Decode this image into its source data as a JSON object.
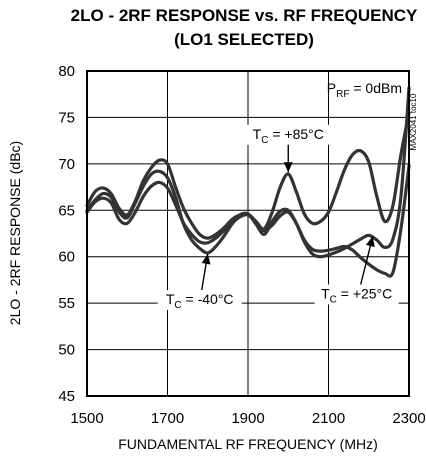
{
  "chart_data": {
    "type": "line",
    "title_line1": "2LO - 2RF RESPONSE vs. RF FREQUENCY",
    "title_line2": "(LO1 SELECTED)",
    "xlabel": "FUNDAMENTAL RF FREQUENCY (MHz)",
    "ylabel": "2LO - 2RF RESPONSE (dBc)",
    "xlim": [
      1500,
      2300
    ],
    "ylim": [
      45,
      80
    ],
    "xticks": [
      1500,
      1700,
      1900,
      2100,
      2300
    ],
    "yticks": [
      45,
      50,
      55,
      60,
      65,
      70,
      75,
      80
    ],
    "grid": true,
    "side_code": "MAX2041 toc10",
    "condition": {
      "main": "P",
      "sub": "RF",
      "rest": " = 0dBm"
    },
    "annotations": [
      {
        "main": "T",
        "sub": "C",
        "rest": " = +85°C",
        "x": 2000,
        "y": 72.7,
        "arrow_to": [
          2000,
          69.1
        ]
      },
      {
        "main": "T",
        "sub": "C",
        "rest": " = -40°C",
        "x": 1780,
        "y": 54.9,
        "arrow_to": [
          1800,
          60.3
        ]
      },
      {
        "main": "T",
        "sub": "C",
        "rest": " = +25°C",
        "x": 2170,
        "y": 55.5,
        "arrow_to": [
          2210,
          62.2
        ]
      }
    ],
    "series": [
      {
        "x": [
          1500,
          1520,
          1540,
          1560,
          1580,
          1600,
          1620,
          1640,
          1660,
          1680,
          1700,
          1720,
          1740,
          1760,
          1780,
          1800,
          1820,
          1840,
          1860,
          1880,
          1900,
          1920,
          1940,
          1960,
          1980,
          2000,
          2020,
          2040,
          2060,
          2080,
          2100,
          2120,
          2140,
          2160,
          2180,
          2200,
          2220,
          2240,
          2260,
          2280,
          2300
        ],
        "values": [
          65.5,
          67.0,
          67.4,
          66.8,
          65.2,
          64.5,
          66.0,
          68.2,
          69.6,
          70.4,
          70.0,
          67.5,
          65.2,
          63.6,
          62.4,
          62.0,
          62.4,
          63.1,
          64.0,
          64.5,
          64.6,
          63.8,
          63.0,
          64.8,
          67.5,
          68.9,
          67.0,
          64.6,
          63.6,
          63.8,
          64.8,
          67.0,
          69.4,
          71.0,
          71.4,
          70.2,
          66.5,
          63.8,
          65.5,
          71.0,
          75.5
        ]
      },
      {
        "x": [
          1500,
          1520,
          1540,
          1560,
          1580,
          1600,
          1620,
          1640,
          1660,
          1680,
          1700,
          1720,
          1740,
          1760,
          1780,
          1800,
          1820,
          1840,
          1860,
          1880,
          1900,
          1920,
          1940,
          1960,
          1980,
          2000,
          2020,
          2040,
          2060,
          2080,
          2100,
          2120,
          2140,
          2160,
          2180,
          2200,
          2220,
          2240,
          2260,
          2280,
          2300
        ],
        "values": [
          65.0,
          66.1,
          66.8,
          66.4,
          64.8,
          64.2,
          65.8,
          67.6,
          68.9,
          69.2,
          68.5,
          66.4,
          63.5,
          61.8,
          60.9,
          60.4,
          61.1,
          62.2,
          63.5,
          64.5,
          64.6,
          63.5,
          62.4,
          63.8,
          64.9,
          65.0,
          63.6,
          61.6,
          60.3,
          60.0,
          60.2,
          60.5,
          60.9,
          61.4,
          61.9,
          62.3,
          61.8,
          61.0,
          61.9,
          66.5,
          78.2
        ]
      },
      {
        "x": [
          1500,
          1520,
          1540,
          1560,
          1580,
          1600,
          1620,
          1640,
          1660,
          1680,
          1700,
          1720,
          1740,
          1760,
          1780,
          1800,
          1820,
          1840,
          1860,
          1880,
          1900,
          1920,
          1940,
          1960,
          1980,
          2000,
          2020,
          2040,
          2060,
          2080,
          2100,
          2120,
          2140,
          2160,
          2180,
          2200,
          2220,
          2240,
          2260,
          2280,
          2300
        ],
        "values": [
          64.8,
          65.9,
          66.3,
          65.8,
          64.0,
          63.6,
          64.8,
          66.5,
          67.6,
          68.0,
          67.4,
          65.6,
          63.6,
          62.4,
          61.6,
          61.5,
          62.0,
          62.8,
          63.6,
          64.3,
          64.5,
          63.7,
          62.8,
          63.4,
          64.4,
          64.8,
          63.6,
          61.8,
          60.8,
          60.6,
          60.7,
          60.9,
          61.1,
          60.7,
          59.9,
          59.2,
          58.6,
          58.2,
          58.3,
          63.0,
          69.8
        ]
      }
    ]
  }
}
